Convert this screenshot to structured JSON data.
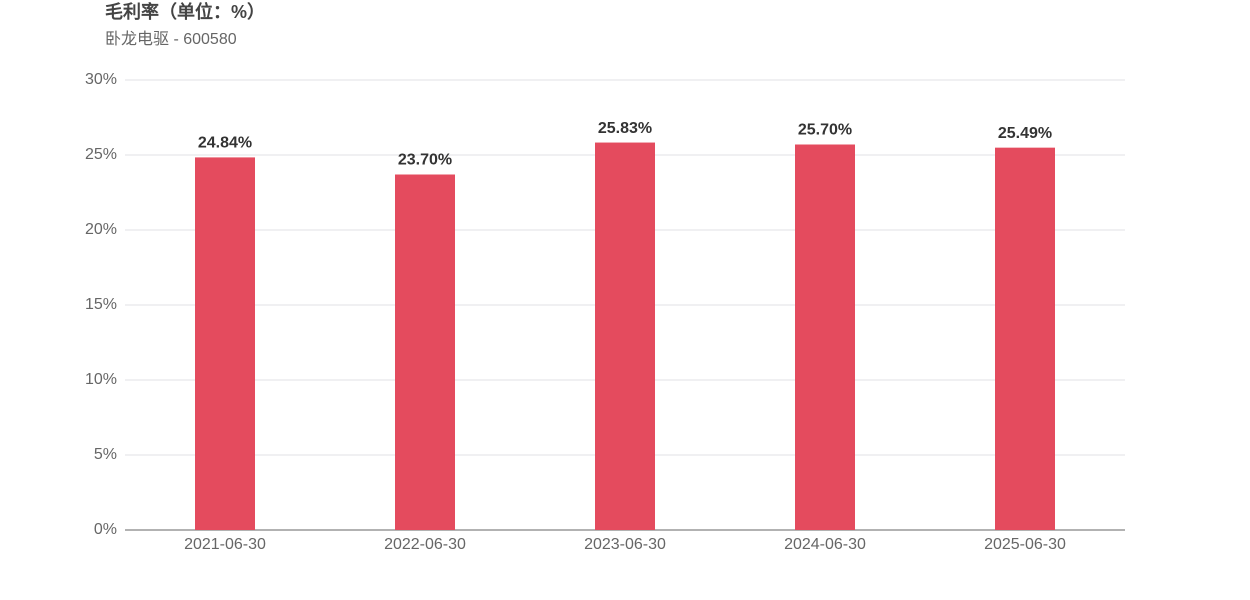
{
  "chart_data": {
    "type": "bar",
    "title": "毛利率（单位：%）",
    "subtitle": "卧龙电驱 - 600580",
    "categories": [
      "2021-06-30",
      "2022-06-30",
      "2023-06-30",
      "2024-06-30",
      "2025-06-30"
    ],
    "values": [
      24.84,
      23.7,
      25.83,
      25.7,
      25.49
    ],
    "value_labels": [
      "24.84%",
      "23.70%",
      "25.83%",
      "25.70%",
      "25.49%"
    ],
    "color": "#e44b5e",
    "ylim": [
      0,
      30
    ],
    "yticks": [
      {
        "value": 0,
        "label": "0%"
      },
      {
        "value": 5,
        "label": "5%"
      },
      {
        "value": 10,
        "label": "10%"
      },
      {
        "value": 15,
        "label": "15%"
      },
      {
        "value": 20,
        "label": "20%"
      },
      {
        "value": 25,
        "label": "25%"
      },
      {
        "value": 30,
        "label": "30%"
      }
    ],
    "grid": true
  }
}
